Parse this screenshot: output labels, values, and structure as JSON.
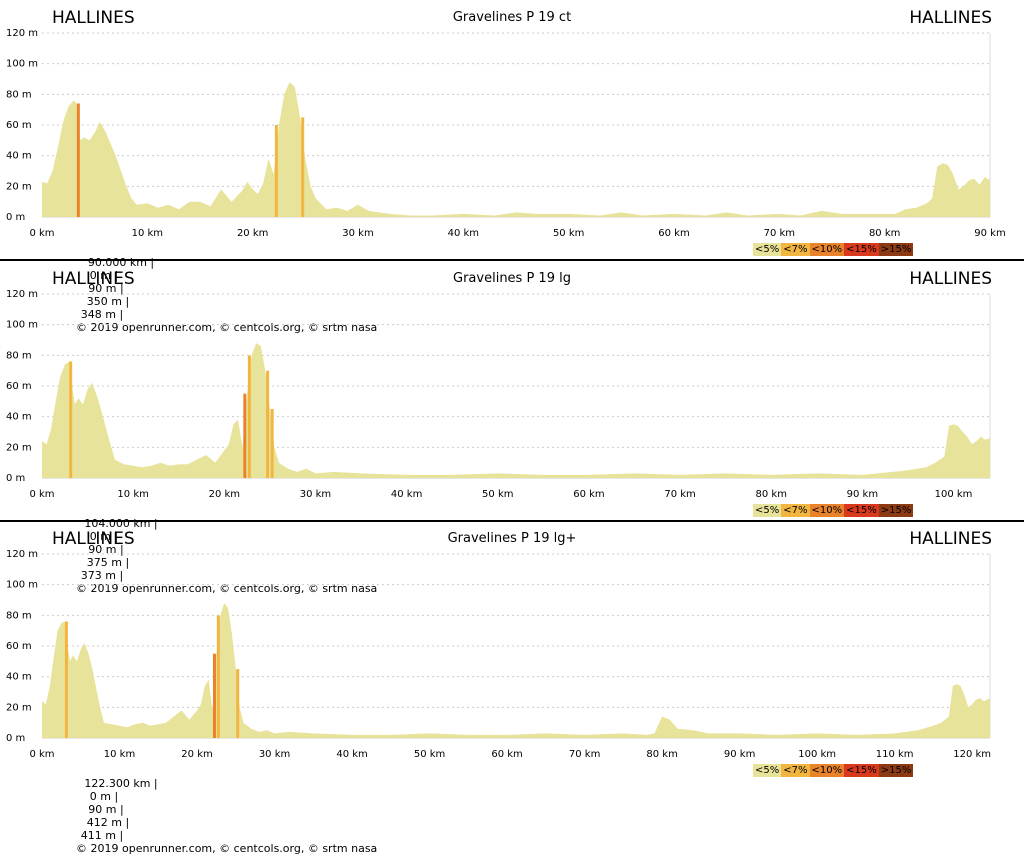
{
  "panels": [
    {
      "start_place": "HALLINES",
      "end_place": "HALLINES",
      "title": "Gravelines P 19 ct",
      "stats": {
        "distance": "90.000 km |",
        "min_alt": "0 m |",
        "max_alt": "90 m |",
        "climb": "350 m |",
        "descent": "348 m |",
        "credits": "© 2019 openrunner.com, © centcols.org, © srtm nasa"
      }
    },
    {
      "start_place": "HALLINES",
      "end_place": "HALLINES",
      "title": "Gravelines P 19 lg",
      "stats": {
        "distance": "104.000 km |",
        "min_alt": "0 m |",
        "max_alt": "90 m |",
        "climb": "375 m |",
        "descent": "373 m |",
        "credits": "© 2019 openrunner.com, © centcols.org, © srtm nasa"
      }
    },
    {
      "start_place": "HALLINES",
      "end_place": "HALLINES",
      "title": "Gravelines P 19 lg+",
      "stats": {
        "distance": "122.300 km |",
        "min_alt": "0 m |",
        "max_alt": "90 m |",
        "climb": "412 m |",
        "descent": "411 m |",
        "credits": "© 2019 openrunner.com, © centcols.org, © srtm nasa"
      }
    }
  ],
  "legend": [
    {
      "label": "<5%",
      "color": "#e8e39a"
    },
    {
      "label": "<7%",
      "color": "#f2b640"
    },
    {
      "label": "<10%",
      "color": "#e8832a"
    },
    {
      "label": "<15%",
      "color": "#d93a1e"
    },
    {
      "label": ">15%",
      "color": "#8b3a14"
    }
  ],
  "chart_data": [
    {
      "type": "area",
      "title": "Gravelines P 19 ct",
      "xlabel": "",
      "ylabel": "",
      "x_unit": "km",
      "y_unit": "m",
      "xlim": [
        0,
        90
      ],
      "ylim": [
        0,
        120
      ],
      "x_ticks": [
        "0 km",
        "10 km",
        "20 km",
        "30 km",
        "40 km",
        "50 km",
        "60 km",
        "70 km",
        "80 km",
        "90 km"
      ],
      "y_ticks": [
        "0 m",
        "20 m",
        "40 m",
        "60 m",
        "80 m",
        "100 m",
        "120 m"
      ],
      "grid": true,
      "fill_color": "#e8e39a",
      "x": [
        0,
        0.5,
        1,
        1.5,
        2,
        2.5,
        3,
        3.3,
        3.6,
        4,
        4.5,
        5,
        5.5,
        6,
        6.5,
        7,
        7.5,
        8,
        8.5,
        9,
        10,
        11,
        12,
        13,
        14,
        15,
        16,
        17,
        18,
        19,
        19.5,
        20,
        20.5,
        21,
        21.5,
        22,
        22.5,
        23,
        23.5,
        24,
        24.5,
        25,
        25.5,
        26,
        27,
        28,
        29,
        30,
        31,
        32,
        33,
        35,
        37,
        40,
        43,
        45,
        47,
        50,
        53,
        55,
        57,
        60,
        63,
        65,
        67,
        70,
        72,
        74,
        76,
        78,
        80,
        81,
        82,
        83,
        84,
        84.5,
        85,
        85.5,
        86,
        86.5,
        87,
        87.5,
        88,
        88.5,
        89,
        89.5,
        90
      ],
      "y": [
        23,
        22,
        30,
        45,
        62,
        72,
        76,
        74,
        50,
        52,
        50,
        55,
        62,
        56,
        48,
        40,
        30,
        20,
        12,
        8,
        9,
        6,
        8,
        5,
        10,
        10,
        7,
        18,
        10,
        17,
        23,
        18,
        15,
        22,
        38,
        28,
        60,
        80,
        88,
        85,
        65,
        38,
        20,
        12,
        5,
        6,
        4,
        8,
        4,
        3,
        2,
        1,
        1,
        2,
        1,
        3,
        2,
        2,
        1,
        3,
        1,
        2,
        1,
        3,
        1,
        2,
        1,
        4,
        2,
        2,
        2,
        2,
        5,
        6,
        9,
        12,
        33,
        35,
        34,
        28,
        18,
        20,
        24,
        25,
        21,
        26,
        24
      ]
    },
    {
      "type": "area",
      "title": "Gravelines P 19 lg",
      "xlabel": "",
      "ylabel": "",
      "x_unit": "km",
      "y_unit": "m",
      "xlim": [
        0,
        104
      ],
      "ylim": [
        0,
        120
      ],
      "x_ticks": [
        "0 km",
        "10 km",
        "20 km",
        "30 km",
        "40 km",
        "50 km",
        "60 km",
        "70 km",
        "80 km",
        "90 km",
        "100 km"
      ],
      "y_ticks": [
        "0 m",
        "20 m",
        "40 m",
        "60 m",
        "80 m",
        "100 m",
        "120 m"
      ],
      "grid": true,
      "fill_color": "#e8e39a",
      "x": [
        0,
        0.5,
        1,
        1.5,
        2,
        2.5,
        3,
        3.3,
        3.6,
        4,
        4.5,
        5,
        5.5,
        6,
        6.5,
        7,
        7.5,
        8,
        9,
        10,
        11,
        12,
        13,
        14,
        15,
        16,
        17,
        18,
        19,
        20,
        20.5,
        21,
        21.5,
        22,
        22.5,
        23,
        23.5,
        24,
        24.5,
        25,
        25.5,
        26,
        27,
        28,
        29,
        30,
        32,
        35,
        40,
        45,
        50,
        55,
        60,
        65,
        70,
        75,
        80,
        85,
        90,
        95,
        97,
        98,
        99,
        99.5,
        100,
        100.5,
        101,
        101.5,
        102,
        102.5,
        103,
        103.5,
        104
      ],
      "y": [
        24,
        22,
        32,
        50,
        66,
        74,
        76,
        60,
        48,
        52,
        48,
        58,
        62,
        54,
        44,
        33,
        22,
        12,
        9,
        8,
        7,
        8,
        10,
        8,
        9,
        9,
        12,
        15,
        10,
        18,
        22,
        35,
        38,
        20,
        55,
        80,
        88,
        86,
        70,
        45,
        20,
        10,
        6,
        4,
        6,
        3,
        4,
        3,
        2,
        2,
        3,
        2,
        2,
        3,
        2,
        3,
        2,
        3,
        2,
        5,
        7,
        10,
        14,
        34,
        35,
        34,
        30,
        27,
        22,
        24,
        27,
        25,
        26
      ]
    },
    {
      "type": "area",
      "title": "Gravelines P 19 lg+",
      "xlabel": "",
      "ylabel": "",
      "x_unit": "km",
      "y_unit": "m",
      "xlim": [
        0,
        122.3
      ],
      "ylim": [
        0,
        120
      ],
      "x_ticks": [
        "0 km",
        "10 km",
        "20 km",
        "30 km",
        "40 km",
        "50 km",
        "60 km",
        "70 km",
        "80 km",
        "90 km",
        "100 km",
        "110 km",
        "120 km"
      ],
      "y_ticks": [
        "0 m",
        "20 m",
        "40 m",
        "60 m",
        "80 m",
        "100 m",
        "120 m"
      ],
      "grid": true,
      "fill_color": "#e8e39a",
      "x": [
        0,
        0.5,
        1,
        1.5,
        2,
        2.5,
        3,
        3.3,
        3.6,
        4,
        4.5,
        5,
        5.5,
        6,
        6.5,
        7,
        7.5,
        8,
        9,
        10,
        11,
        12,
        13,
        14,
        15,
        16,
        17,
        18,
        19,
        20,
        20.5,
        21,
        21.5,
        22,
        22.5,
        23,
        23.5,
        24,
        24.5,
        25,
        25.5,
        26,
        27,
        28,
        29,
        30,
        32,
        35,
        40,
        45,
        50,
        55,
        60,
        65,
        70,
        75,
        78,
        79,
        80,
        81,
        82,
        84,
        86,
        90,
        95,
        100,
        105,
        110,
        113,
        115,
        116,
        117,
        117.5,
        118,
        118.5,
        119,
        119.5,
        120,
        120.5,
        121,
        121.5,
        122.3
      ],
      "y": [
        24,
        22,
        34,
        52,
        70,
        75,
        76,
        60,
        50,
        54,
        50,
        58,
        62,
        55,
        45,
        32,
        20,
        10,
        9,
        8,
        7,
        9,
        10,
        8,
        9,
        10,
        14,
        18,
        12,
        18,
        22,
        34,
        38,
        18,
        55,
        80,
        88,
        85,
        68,
        45,
        20,
        10,
        6,
        4,
        5,
        3,
        4,
        3,
        2,
        2,
        3,
        2,
        2,
        3,
        2,
        3,
        2,
        3,
        14,
        12,
        6,
        5,
        3,
        3,
        2,
        3,
        2,
        3,
        5,
        8,
        10,
        14,
        34,
        35,
        34,
        28,
        20,
        22,
        25,
        26,
        24,
        26
      ]
    }
  ]
}
